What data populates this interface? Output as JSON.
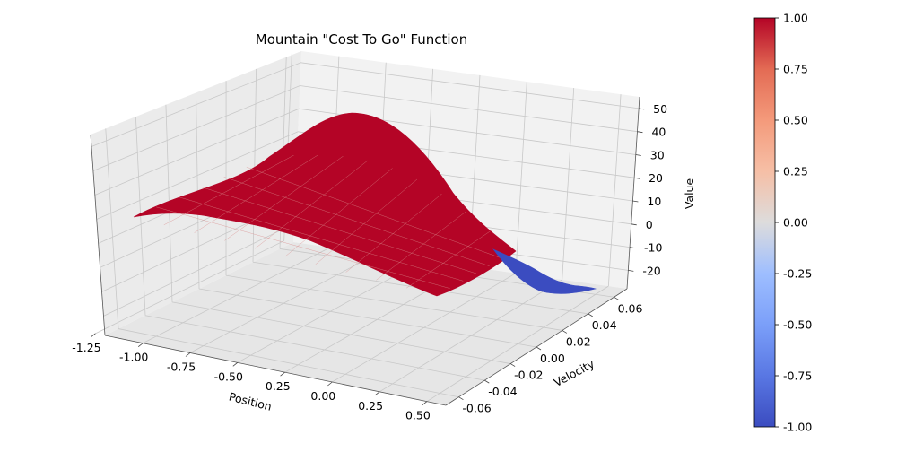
{
  "chart_data": {
    "type": "surface3d",
    "title": "Mountain \"Cost To Go\" Function",
    "xlabel": "Position",
    "ylabel": "Velocity",
    "zlabel": "Value",
    "x_ticks": [
      "-1.25",
      "-1.00",
      "-0.75",
      "-0.50",
      "-0.25",
      "0.00",
      "0.25",
      "0.50"
    ],
    "y_ticks": [
      "-0.06",
      "-0.04",
      "-0.02",
      "0.00",
      "0.02",
      "0.04",
      "0.06"
    ],
    "z_ticks": [
      "-20",
      "-10",
      "0",
      "10",
      "20",
      "30",
      "40",
      "50"
    ],
    "xlim": [
      -1.2,
      0.6
    ],
    "ylim": [
      -0.07,
      0.07
    ],
    "zlim": [
      -28,
      55
    ],
    "grid": true,
    "colormap": "coolwarm",
    "color_range": [
      -1,
      1
    ],
    "colorbar_ticks": [
      "1.00",
      "0.75",
      "0.50",
      "0.25",
      "0.00",
      "-0.25",
      "-0.50",
      "-0.75",
      "-1.00"
    ],
    "surface_description": "Value peaks near 50 around position 0.0 at low velocity, descends toward about 0 at position -1.2 and to about -25 at position 0.5, velocity 0.07",
    "surface_colors": {
      "positive": "#b40426",
      "negative": "#3b4cc0",
      "grid_line": "#d98b8b"
    }
  }
}
